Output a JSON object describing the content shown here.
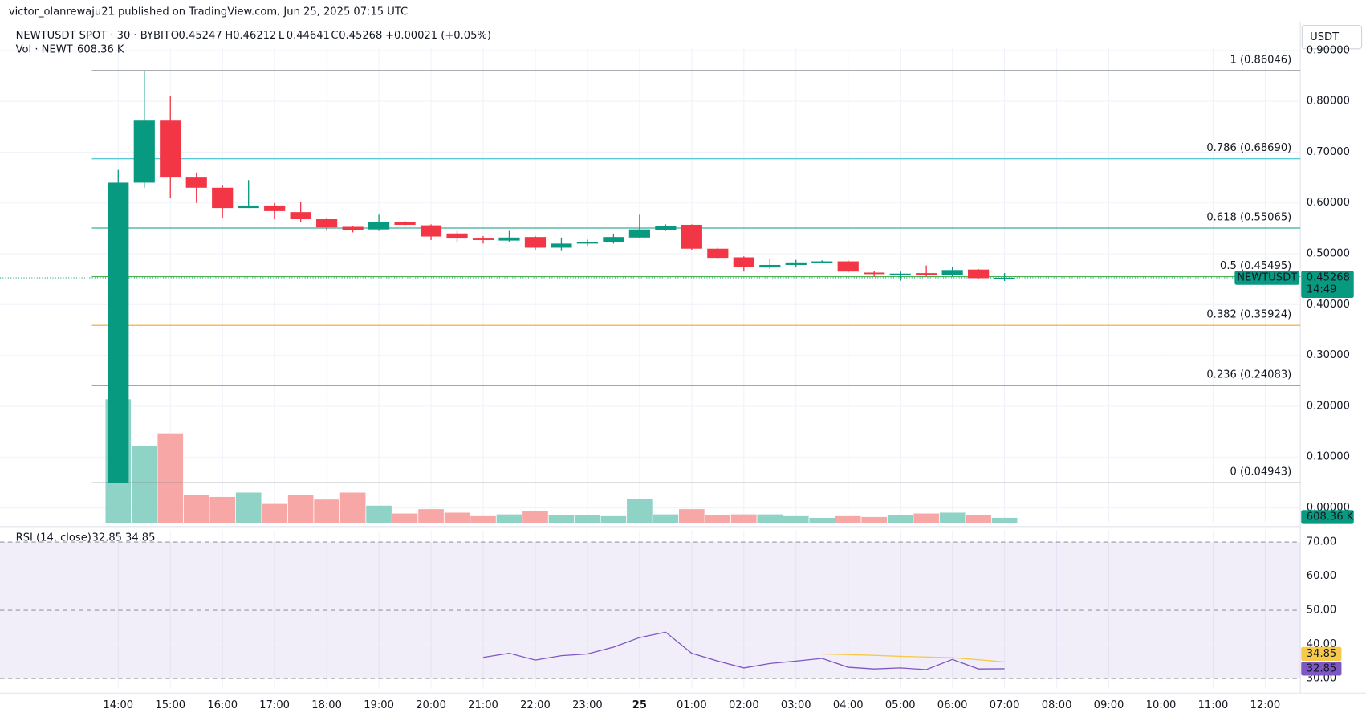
{
  "header": {
    "publisher": "victor_olanrewaju21 published on TradingView.com, Jun 25, 2025 07:15 UTC",
    "currency": "USDT"
  },
  "chart_data": [
    {
      "type": "candlestick",
      "title": "NEWTUSDT SPOT · 30 · BYBIT",
      "ohlc_labels": [
        "O",
        "H",
        "L",
        "C"
      ],
      "change": "+0.00021 (+0.05%)",
      "symbol": "NEWTUSDT",
      "countdown": "14:49",
      "categories": [
        "14:00",
        null,
        "15:00",
        null,
        "16:00",
        null,
        "17:00",
        null,
        "18:00",
        null,
        "19:00",
        null,
        "20:00",
        null,
        "21:00",
        null,
        "22:00",
        null,
        "23:00",
        null,
        "25",
        null,
        "01:00",
        null,
        "02:00",
        null,
        "03:00",
        null,
        "04:00",
        null,
        "05:00",
        null,
        "06:00",
        null,
        "07:00",
        null,
        "08:00",
        null,
        "09:00",
        null,
        "10:00",
        null,
        "11:00",
        null,
        "12:00"
      ],
      "open": [
        0.04943,
        0.64,
        0.762,
        0.65,
        0.63,
        0.59,
        0.595,
        0.582,
        0.568,
        0.553,
        0.548,
        0.562,
        0.556,
        0.54,
        0.53,
        0.526,
        0.533,
        0.512,
        0.52,
        0.523,
        0.532,
        0.547,
        0.557,
        0.51,
        0.493,
        0.473,
        0.478,
        0.483,
        0.485,
        0.463,
        0.46,
        0.462,
        0.458,
        0.469,
        0.45247,
        null,
        null,
        null,
        null,
        null,
        null,
        null,
        null,
        null,
        null
      ],
      "high": [
        0.665,
        0.86046,
        0.81,
        0.66,
        0.635,
        0.645,
        0.6,
        0.602,
        0.57,
        0.555,
        0.577,
        0.565,
        0.558,
        0.545,
        0.535,
        0.545,
        0.535,
        0.532,
        0.528,
        0.538,
        0.577,
        0.558,
        0.558,
        0.512,
        0.495,
        0.49,
        0.488,
        0.487,
        0.487,
        0.466,
        0.465,
        0.477,
        0.474,
        0.47,
        0.46212,
        null,
        null,
        null,
        null,
        null,
        null,
        null,
        null,
        null,
        null
      ],
      "low": [
        0.04943,
        0.63,
        0.61,
        0.6,
        0.57,
        0.59,
        0.568,
        0.563,
        0.545,
        0.542,
        0.545,
        0.555,
        0.527,
        0.522,
        0.52,
        0.524,
        0.508,
        0.507,
        0.516,
        0.52,
        0.53,
        0.545,
        0.508,
        0.49,
        0.465,
        0.47,
        0.473,
        0.482,
        0.463,
        0.455,
        0.447,
        0.455,
        0.455,
        0.451,
        0.44641,
        null,
        null,
        null,
        null,
        null,
        null,
        null,
        null,
        null,
        null
      ],
      "close": [
        0.64,
        0.762,
        0.65,
        0.63,
        0.59,
        0.595,
        0.584,
        0.568,
        0.552,
        0.547,
        0.562,
        0.557,
        0.534,
        0.53,
        0.527,
        0.532,
        0.512,
        0.52,
        0.523,
        0.533,
        0.548,
        0.555,
        0.51,
        0.492,
        0.474,
        0.478,
        0.483,
        0.485,
        0.465,
        0.46,
        0.461,
        0.458,
        0.468,
        0.452,
        0.45268,
        null,
        null,
        null,
        null,
        null,
        null,
        null,
        null,
        null,
        null
      ],
      "up_color": "#089981",
      "down_color": "#f23645",
      "ylim": [
        -0.03,
        0.905
      ],
      "yticks": [
        {
          "value": 0,
          "label": "0.00000"
        },
        {
          "value": 0.1,
          "label": "0.10000"
        },
        {
          "value": 0.2,
          "label": "0.20000"
        },
        {
          "value": 0.3,
          "label": "0.30000"
        },
        {
          "value": 0.4,
          "label": "0.40000"
        },
        {
          "value": 0.5,
          "label": "0.50000"
        },
        {
          "value": 0.6,
          "label": "0.60000"
        },
        {
          "value": 0.7,
          "label": "0.70000"
        },
        {
          "value": 0.8,
          "label": "0.80000"
        },
        {
          "value": 0.9,
          "label": "0.90000"
        }
      ],
      "grid": true,
      "fib_levels": [
        {
          "level": 1,
          "price": 0.86046,
          "label": "1 (0.86046)",
          "color": "#787b86"
        },
        {
          "level": 0.786,
          "price": 0.6869,
          "label": "0.786 (0.68690)",
          "color": "#22b8c8"
        },
        {
          "level": 0.618,
          "price": 0.55065,
          "label": "0.618 (0.55065)",
          "color": "#089981"
        },
        {
          "level": 0.5,
          "price": 0.45495,
          "label": "0.5 (0.45495)",
          "color": "#4caf50"
        },
        {
          "level": 0.382,
          "price": 0.35924,
          "label": "0.382 (0.35924)",
          "color": "#f5a623"
        },
        {
          "level": 0.236,
          "price": 0.24083,
          "label": "0.236 (0.24083)",
          "color": "#f23645"
        },
        {
          "level": 0,
          "price": 0.04943,
          "label": "0 (0.04943)",
          "color": "#787b86"
        }
      ]
    },
    {
      "type": "volume",
      "title": "Vol · NEWT",
      "value_label": "608.36 K",
      "up_color": "#8fd3c6",
      "down_color": "#f7a7a5",
      "values": [
        14200000,
        8800000,
        10300000,
        3200000,
        3000000,
        3500000,
        2200000,
        3200000,
        2700000,
        3500000,
        2000000,
        1100000,
        1600000,
        1200000,
        800000,
        1000000,
        1400000,
        900000,
        900000,
        800000,
        2800000,
        1000000,
        1600000,
        900000,
        1000000,
        1000000,
        800000,
        600000,
        800000,
        700000,
        900000,
        1100000,
        1200000,
        900000,
        608360,
        null,
        null,
        null,
        null,
        null,
        null,
        null,
        null,
        null,
        null
      ]
    },
    {
      "type": "line",
      "title": "RSI (14, close)",
      "ylim": [
        27,
        73.5
      ],
      "yticks": [
        {
          "value": 30,
          "label": "30.00"
        },
        {
          "value": 40,
          "label": "40.00"
        },
        {
          "value": 50,
          "label": "50.00"
        },
        {
          "value": 60,
          "label": "60.00"
        },
        {
          "value": 70,
          "label": "70.00"
        }
      ],
      "band": [
        30,
        70
      ],
      "levels": [
        30,
        50,
        70
      ],
      "series": [
        {
          "color": "#7e57c2",
          "values": [
            null,
            null,
            null,
            null,
            null,
            null,
            null,
            null,
            null,
            null,
            null,
            null,
            null,
            null,
            36.2,
            37.4,
            35.4,
            36.7,
            37.2,
            39.2,
            42,
            43.6,
            37.4,
            35.1,
            33.1,
            34.4,
            35.1,
            35.9,
            33.3,
            32.8,
            33.1,
            32.6,
            35.6,
            32.8,
            32.85,
            null,
            null,
            null,
            null,
            null,
            null,
            null,
            null,
            null,
            null
          ]
        },
        {
          "color": "#f7c948",
          "values": [
            null,
            null,
            null,
            null,
            null,
            null,
            null,
            null,
            null,
            null,
            null,
            null,
            null,
            null,
            null,
            null,
            null,
            null,
            null,
            null,
            null,
            null,
            null,
            null,
            null,
            null,
            null,
            37.2,
            37.0,
            36.8,
            36.5,
            36.3,
            36.1,
            35.5,
            34.85,
            null,
            null,
            null,
            null,
            null,
            null,
            null,
            null,
            null,
            null
          ]
        }
      ]
    }
  ]
}
